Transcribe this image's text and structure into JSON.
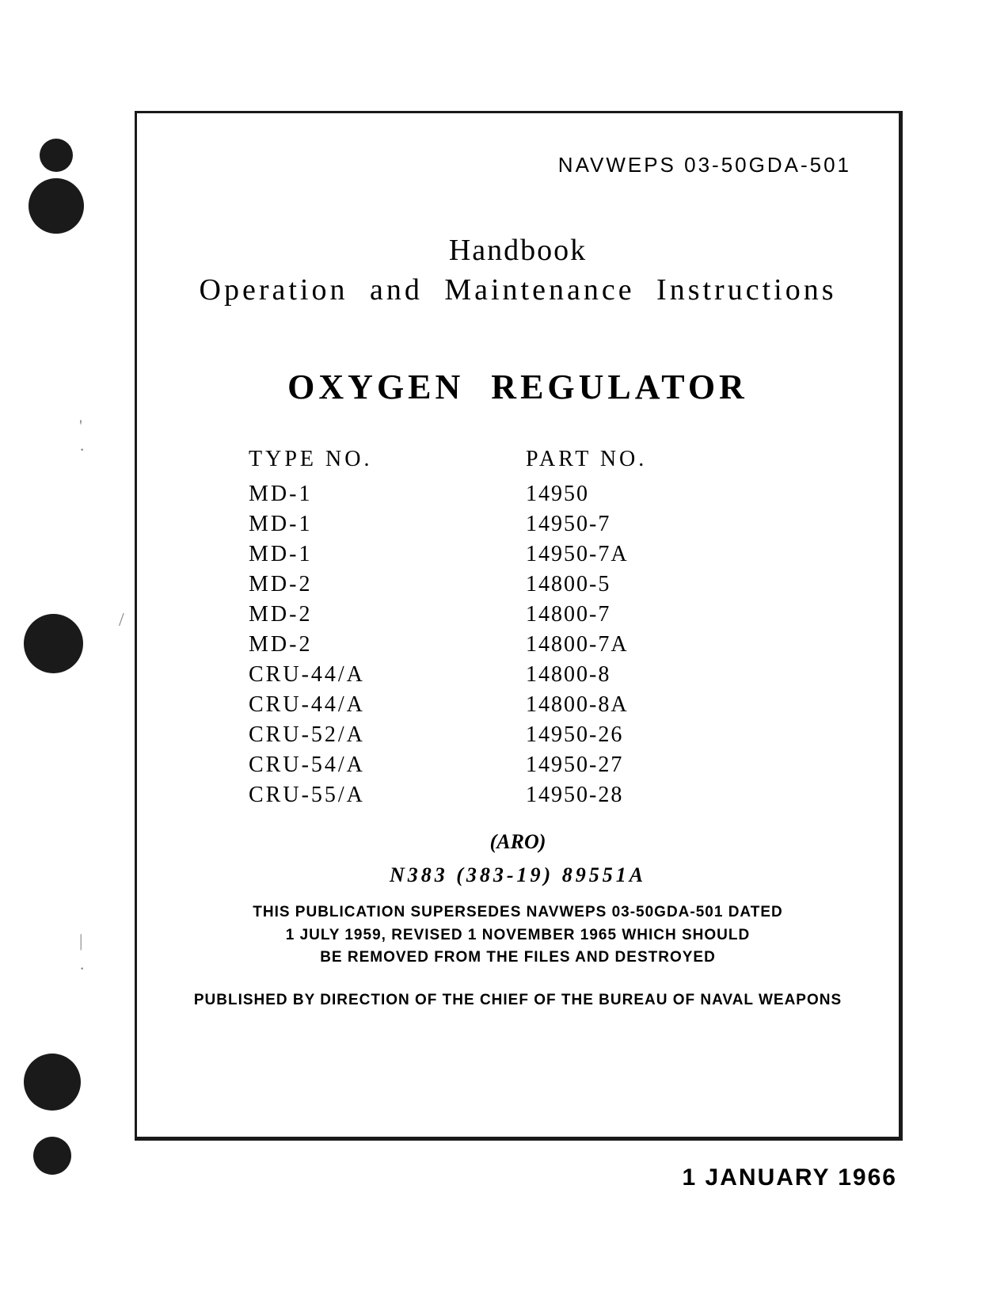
{
  "docNumber": "NAVWEPS  03-50GDA-501",
  "handbookTitle": "Handbook",
  "subtitle": "Operation  and  Maintenance  Instructions",
  "mainTitle": "OXYGEN  REGULATOR",
  "headers": {
    "type": "TYPE NO.",
    "part": "PART NO."
  },
  "rows": [
    {
      "type": "MD-1",
      "part": "14950"
    },
    {
      "type": "MD-1",
      "part": "14950-7"
    },
    {
      "type": "MD-1",
      "part": "14950-7A"
    },
    {
      "type": "MD-2",
      "part": "14800-5"
    },
    {
      "type": "MD-2",
      "part": "14800-7"
    },
    {
      "type": "MD-2",
      "part": "14800-7A"
    },
    {
      "type": "CRU-44/A",
      "part": "14800-8"
    },
    {
      "type": "CRU-44/A",
      "part": "14800-8A"
    },
    {
      "type": "CRU-52/A",
      "part": "14950-26"
    },
    {
      "type": "CRU-54/A",
      "part": "14950-27"
    },
    {
      "type": "CRU-55/A",
      "part": "14950-28"
    }
  ],
  "aro": "(ARO)",
  "serial": "N383 (383-19) 89551A",
  "supersedeLine1": "THIS PUBLICATION SUPERSEDES NAVWEPS 03-50GDA-501 DATED",
  "supersedeLine2": "1 JULY 1959, REVISED 1 NOVEMBER 1965 WHICH SHOULD",
  "supersedeLine3": "BE REMOVED FROM THE FILES AND DESTROYED",
  "published": "PUBLISHED BY DIRECTION OF THE CHIEF OF THE BUREAU OF NAVAL WEAPONS",
  "date": "1 JANUARY 1966",
  "marks": {
    "m1": "'",
    "m2": "·",
    "m3": "/",
    "m4": "|",
    "m5": "·"
  },
  "colors": {
    "text": "#1a1a1a",
    "background": "#ffffff",
    "border": "#1a1a1a"
  }
}
